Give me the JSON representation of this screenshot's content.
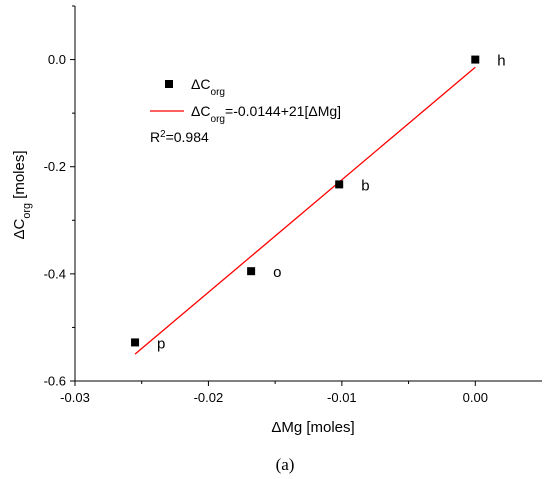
{
  "chart_data": {
    "type": "scatter",
    "xlabel": "ΔMg [moles]",
    "ylabel": "ΔC_org [moles]",
    "xlim": [
      -0.03,
      0.005
    ],
    "ylim": [
      -0.6,
      0.1
    ],
    "x_ticks": [
      -0.03,
      -0.02,
      -0.01,
      0.0
    ],
    "x_tick_labels": [
      "-0.03",
      "-0.02",
      "-0.01",
      "0.00"
    ],
    "y_ticks": [
      0.0,
      -0.2,
      -0.4,
      -0.6
    ],
    "y_tick_labels": [
      "0.0",
      "-0.2",
      "-0.4",
      "-0.6"
    ],
    "grid": false,
    "legend_position": "top-left",
    "series": [
      {
        "name": "ΔC_org",
        "kind": "points",
        "marker": "square",
        "color": "#000000",
        "x": [
          0.0,
          -0.0102,
          -0.0168,
          -0.0255
        ],
        "y": [
          0.0,
          -0.233,
          -0.395,
          -0.528
        ],
        "point_labels": [
          "h",
          "b",
          "o",
          "p"
        ]
      },
      {
        "name": "ΔC_org=-0.0144+21[ΔMg]",
        "kind": "fit",
        "color": "#ff0000",
        "intercept": -0.0144,
        "slope": 21,
        "x_range": [
          -0.0255,
          0.0
        ]
      }
    ],
    "annotations": {
      "r2": "R2=0.984"
    }
  },
  "caption": "(a)"
}
